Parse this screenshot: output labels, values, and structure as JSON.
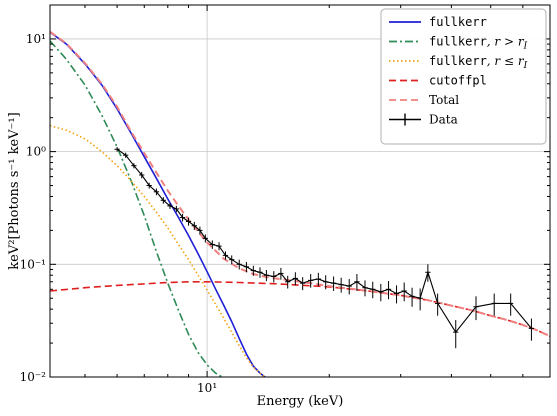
{
  "chart_data": {
    "type": "line",
    "title": "",
    "xlabel": "Energy (keV)",
    "ylabel": "keV²[Photons s⁻¹ keV⁻¹]",
    "xscale": "log",
    "yscale": "log",
    "xlim": [
      4.1,
      70
    ],
    "ylim": [
      0.01,
      20
    ],
    "grid": true,
    "legend_position": "top-right",
    "xticks": [
      {
        "value": 10,
        "label": "10¹"
      }
    ],
    "yticks": [
      {
        "value": 0.01,
        "label": "10⁻²"
      },
      {
        "value": 0.1,
        "label": "10⁻¹"
      },
      {
        "value": 1,
        "label": "10⁰"
      },
      {
        "value": 10,
        "label": "10¹"
      }
    ],
    "series": [
      {
        "name": "fullkerr",
        "color": "#1f1fd6",
        "style": "solid",
        "x": [
          4.1,
          4.5,
          5,
          5.5,
          6,
          6.5,
          7,
          7.5,
          8,
          8.5,
          9,
          9.5,
          10,
          10.5,
          11,
          11.5,
          12,
          12.5,
          13,
          13.5,
          14
        ],
        "y": [
          11.5,
          9.0,
          6.0,
          3.9,
          2.4,
          1.45,
          0.9,
          0.58,
          0.38,
          0.26,
          0.18,
          0.124,
          0.086,
          0.06,
          0.043,
          0.031,
          0.022,
          0.016,
          0.0125,
          0.0108,
          0.0098
        ]
      },
      {
        "name": "fullkerr, r > r_I",
        "color": "#2e8b57",
        "style": "dashdot",
        "x": [
          4.1,
          4.5,
          5,
          5.5,
          6,
          6.5,
          7,
          7.5,
          8,
          8.5,
          9,
          9.5,
          10,
          10.5,
          11
        ],
        "y": [
          9.6,
          6.6,
          3.9,
          2.1,
          1.1,
          0.55,
          0.27,
          0.13,
          0.068,
          0.039,
          0.024,
          0.0165,
          0.0128,
          0.0108,
          0.0098
        ]
      },
      {
        "name": "fullkerr, r ≤ r_I",
        "color": "#f2a20c",
        "style": "dotted",
        "x": [
          4.1,
          4.5,
          5,
          5.5,
          6,
          6.5,
          7,
          7.5,
          8,
          8.5,
          9,
          9.5,
          10,
          10.5,
          11,
          11.5,
          12,
          12.5,
          13,
          13.5,
          14
        ],
        "y": [
          1.7,
          1.55,
          1.3,
          1.0,
          0.75,
          0.55,
          0.4,
          0.29,
          0.21,
          0.15,
          0.11,
          0.08,
          0.059,
          0.044,
          0.033,
          0.025,
          0.019,
          0.0148,
          0.0123,
          0.0108,
          0.0098
        ]
      },
      {
        "name": "cutoffpl",
        "color": "#e02020",
        "style": "dashed",
        "x": [
          4.1,
          5,
          6,
          7,
          8,
          9,
          10,
          12,
          15,
          20,
          25,
          30,
          35,
          40,
          45,
          50,
          55,
          60,
          65,
          70
        ],
        "y": [
          0.058,
          0.062,
          0.065,
          0.067,
          0.069,
          0.07,
          0.07,
          0.069,
          0.067,
          0.063,
          0.058,
          0.053,
          0.048,
          0.043,
          0.039,
          0.035,
          0.032,
          0.029,
          0.026,
          0.023
        ]
      },
      {
        "name": "Total",
        "color": "#f08080",
        "style": "dashed",
        "x": [
          4.1,
          4.5,
          5,
          5.5,
          6,
          6.5,
          7,
          7.5,
          8,
          8.5,
          9,
          9.5,
          10,
          11,
          12,
          13,
          14,
          16,
          18,
          20,
          25,
          30,
          35,
          40,
          45,
          50,
          55,
          60,
          65,
          70
        ],
        "y": [
          11.6,
          9.1,
          6.1,
          4.0,
          2.5,
          1.5,
          0.97,
          0.65,
          0.45,
          0.33,
          0.25,
          0.195,
          0.156,
          0.112,
          0.092,
          0.082,
          0.077,
          0.072,
          0.068,
          0.064,
          0.058,
          0.053,
          0.048,
          0.043,
          0.039,
          0.035,
          0.032,
          0.029,
          0.026,
          0.023
        ]
      }
    ],
    "data_series": {
      "name": "Data",
      "color": "#000000",
      "style": "errorbar",
      "x": [
        6.0,
        6.3,
        6.6,
        6.9,
        7.2,
        7.5,
        7.8,
        8.1,
        8.4,
        8.7,
        9.0,
        9.3,
        9.6,
        9.9,
        10.3,
        10.7,
        11.1,
        11.5,
        12.0,
        12.5,
        13.0,
        13.5,
        14.0,
        14.6,
        15.2,
        15.8,
        16.5,
        17.2,
        18.0,
        18.8,
        19.6,
        20.5,
        21.4,
        22.4,
        23.4,
        24.5,
        25.6,
        26.8,
        28.0,
        29.3,
        30.6,
        32.0,
        33.5,
        35.0,
        37.0,
        41.0,
        46.0,
        51.0,
        56.0,
        63.0
      ],
      "y": [
        1.05,
        0.93,
        0.75,
        0.62,
        0.5,
        0.44,
        0.37,
        0.33,
        0.31,
        0.26,
        0.24,
        0.22,
        0.2,
        0.17,
        0.15,
        0.145,
        0.12,
        0.11,
        0.1,
        0.095,
        0.088,
        0.085,
        0.08,
        0.078,
        0.083,
        0.07,
        0.075,
        0.068,
        0.072,
        0.074,
        0.07,
        0.068,
        0.066,
        0.064,
        0.07,
        0.062,
        0.06,
        0.057,
        0.06,
        0.055,
        0.058,
        0.052,
        0.05,
        0.085,
        0.045,
        0.025,
        0.042,
        0.045,
        0.045,
        0.027
      ],
      "yerr": [
        0.05,
        0.05,
        0.04,
        0.04,
        0.03,
        0.03,
        0.025,
        0.02,
        0.02,
        0.02,
        0.02,
        0.018,
        0.016,
        0.014,
        0.013,
        0.012,
        0.01,
        0.01,
        0.01,
        0.01,
        0.009,
        0.009,
        0.009,
        0.009,
        0.01,
        0.009,
        0.01,
        0.009,
        0.01,
        0.01,
        0.01,
        0.01,
        0.01,
        0.01,
        0.012,
        0.01,
        0.01,
        0.01,
        0.011,
        0.01,
        0.011,
        0.01,
        0.011,
        0.015,
        0.01,
        0.007,
        0.01,
        0.01,
        0.01,
        0.006
      ]
    }
  },
  "legend": {
    "items": [
      {
        "label": "fullkerr",
        "suffix": "",
        "mono": true,
        "color": "#1f1fd6",
        "style": "solid"
      },
      {
        "label": "fullkerr",
        "suffix": ", r > r",
        "sub": "I",
        "mono": true,
        "color": "#2e8b57",
        "style": "dashdot"
      },
      {
        "label": "fullkerr",
        "suffix": ", r ≤ r",
        "sub": "I",
        "mono": true,
        "color": "#f2a20c",
        "style": "dotted"
      },
      {
        "label": "cutoffpl",
        "suffix": "",
        "mono": true,
        "color": "#e02020",
        "style": "dashed"
      },
      {
        "label": "Total",
        "suffix": "",
        "mono": false,
        "color": "#f08080",
        "style": "dashed"
      },
      {
        "label": "Data",
        "suffix": "",
        "mono": false,
        "color": "#000000",
        "style": "errorbar"
      }
    ]
  }
}
